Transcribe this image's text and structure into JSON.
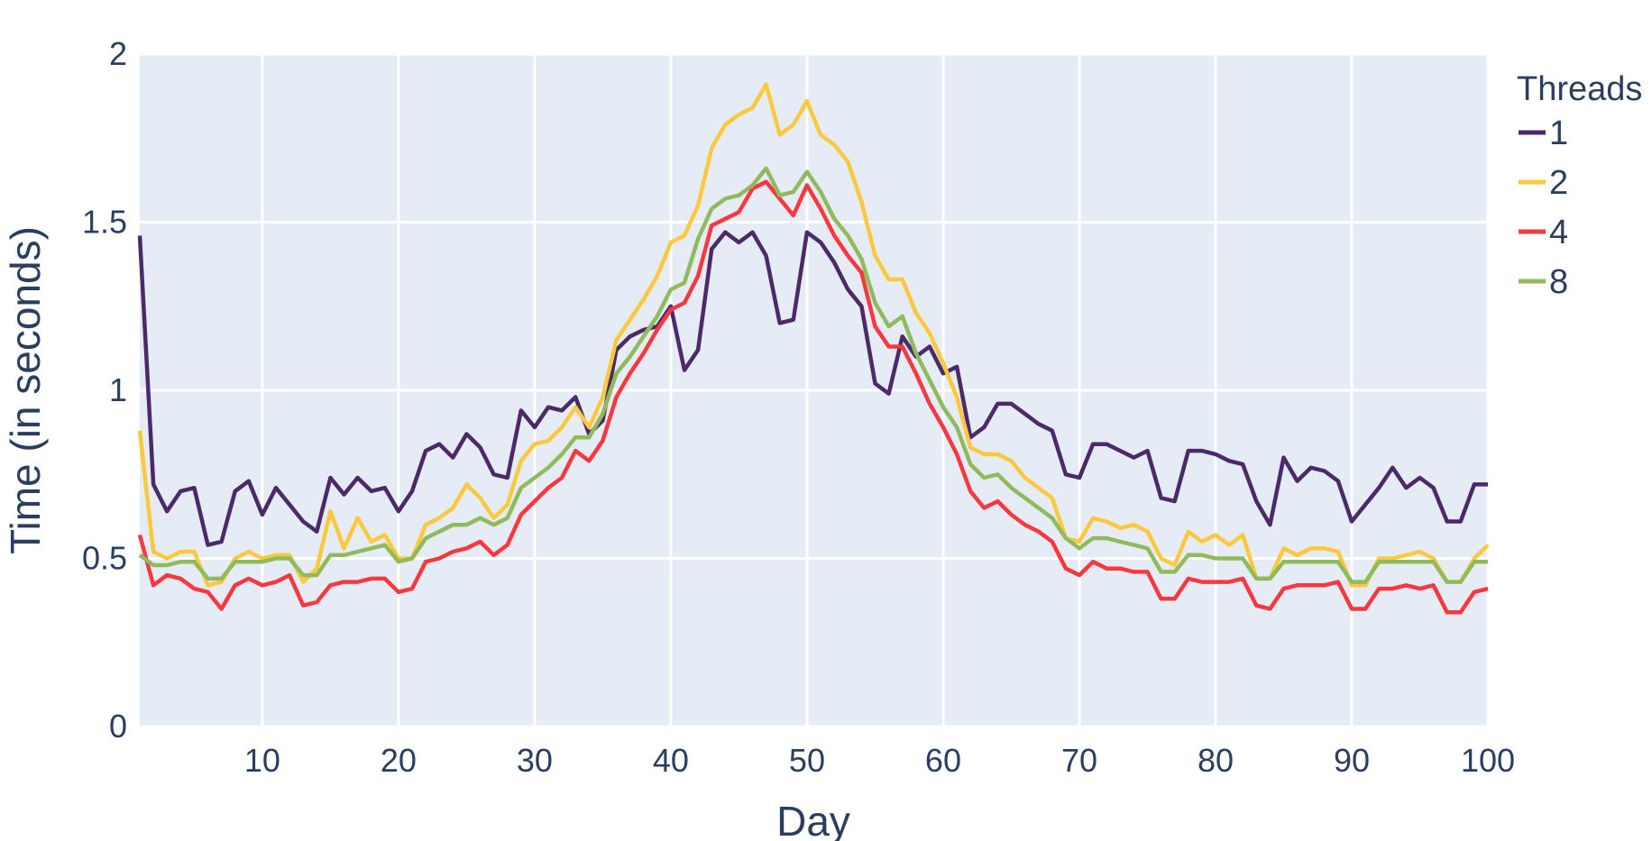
{
  "chart_data": {
    "type": "line",
    "xlabel": "Day",
    "ylabel": "Time (in seconds)",
    "xlim": [
      1,
      100
    ],
    "ylim": [
      0,
      2
    ],
    "xticks": [
      10,
      20,
      30,
      40,
      50,
      60,
      70,
      80,
      90,
      100
    ],
    "xtick_labels": [
      "10",
      "20",
      "30",
      "40",
      "50",
      "60",
      "70",
      "80",
      "90",
      "100"
    ],
    "yticks": [
      0,
      0.5,
      1,
      1.5,
      2
    ],
    "ytick_labels": [
      "0",
      "0.5",
      "1",
      "1.5",
      "2"
    ],
    "grid": true,
    "plot_background": "#e5ecf6",
    "legend": {
      "title": "Threads",
      "position": "top-right"
    },
    "x": [
      1,
      2,
      3,
      4,
      5,
      6,
      7,
      8,
      9,
      10,
      11,
      12,
      13,
      14,
      15,
      16,
      17,
      18,
      19,
      20,
      21,
      22,
      23,
      24,
      25,
      26,
      27,
      28,
      29,
      30,
      31,
      32,
      33,
      34,
      35,
      36,
      37,
      38,
      39,
      40,
      41,
      42,
      43,
      44,
      45,
      46,
      47,
      48,
      49,
      50,
      51,
      52,
      53,
      54,
      55,
      56,
      57,
      58,
      59,
      60,
      61,
      62,
      63,
      64,
      65,
      66,
      67,
      68,
      69,
      70,
      71,
      72,
      73,
      74,
      75,
      76,
      77,
      78,
      79,
      80,
      81,
      82,
      83,
      84,
      85,
      86,
      87,
      88,
      89,
      90,
      91,
      92,
      93,
      94,
      95,
      96,
      97,
      98,
      99,
      100
    ],
    "series": [
      {
        "name": "1",
        "color": "#4c2a69",
        "values": [
          1.46,
          0.72,
          0.64,
          0.7,
          0.71,
          0.54,
          0.55,
          0.7,
          0.73,
          0.63,
          0.71,
          0.66,
          0.61,
          0.58,
          0.74,
          0.69,
          0.74,
          0.7,
          0.71,
          0.64,
          0.7,
          0.82,
          0.84,
          0.8,
          0.87,
          0.83,
          0.75,
          0.74,
          0.94,
          0.89,
          0.95,
          0.94,
          0.98,
          0.87,
          0.91,
          1.12,
          1.16,
          1.18,
          1.19,
          1.25,
          1.06,
          1.12,
          1.42,
          1.47,
          1.44,
          1.47,
          1.4,
          1.2,
          1.21,
          1.47,
          1.44,
          1.38,
          1.3,
          1.25,
          1.02,
          0.99,
          1.16,
          1.1,
          1.13,
          1.05,
          1.07,
          0.86,
          0.89,
          0.96,
          0.96,
          0.93,
          0.9,
          0.88,
          0.75,
          0.74,
          0.84,
          0.84,
          0.82,
          0.8,
          0.82,
          0.68,
          0.67,
          0.82,
          0.82,
          0.81,
          0.79,
          0.78,
          0.67,
          0.6,
          0.8,
          0.73,
          0.77,
          0.76,
          0.73,
          0.61,
          0.66,
          0.71,
          0.77,
          0.71,
          0.74,
          0.71,
          0.61,
          0.61,
          0.72,
          0.72
        ]
      },
      {
        "name": "2",
        "color": "#fcc93e",
        "values": [
          0.88,
          0.52,
          0.5,
          0.52,
          0.52,
          0.42,
          0.43,
          0.5,
          0.52,
          0.5,
          0.51,
          0.51,
          0.43,
          0.47,
          0.64,
          0.53,
          0.62,
          0.55,
          0.57,
          0.5,
          0.5,
          0.6,
          0.62,
          0.65,
          0.72,
          0.68,
          0.62,
          0.66,
          0.79,
          0.84,
          0.85,
          0.89,
          0.95,
          0.89,
          0.98,
          1.15,
          1.21,
          1.27,
          1.34,
          1.44,
          1.46,
          1.55,
          1.72,
          1.79,
          1.82,
          1.84,
          1.91,
          1.76,
          1.79,
          1.86,
          1.76,
          1.73,
          1.68,
          1.56,
          1.4,
          1.33,
          1.33,
          1.23,
          1.17,
          1.08,
          0.98,
          0.83,
          0.81,
          0.81,
          0.79,
          0.74,
          0.71,
          0.68,
          0.56,
          0.55,
          0.62,
          0.61,
          0.59,
          0.6,
          0.58,
          0.5,
          0.48,
          0.58,
          0.55,
          0.57,
          0.54,
          0.57,
          0.44,
          0.44,
          0.53,
          0.51,
          0.53,
          0.53,
          0.52,
          0.42,
          0.42,
          0.5,
          0.5,
          0.51,
          0.52,
          0.5,
          0.43,
          0.43,
          0.5,
          0.54
        ]
      },
      {
        "name": "4",
        "color": "#f7383f",
        "values": [
          0.57,
          0.42,
          0.45,
          0.44,
          0.41,
          0.4,
          0.35,
          0.42,
          0.44,
          0.42,
          0.43,
          0.45,
          0.36,
          0.37,
          0.42,
          0.43,
          0.43,
          0.44,
          0.44,
          0.4,
          0.41,
          0.49,
          0.5,
          0.52,
          0.53,
          0.55,
          0.51,
          0.54,
          0.63,
          0.67,
          0.71,
          0.74,
          0.82,
          0.79,
          0.85,
          0.98,
          1.05,
          1.11,
          1.18,
          1.24,
          1.26,
          1.34,
          1.49,
          1.51,
          1.53,
          1.6,
          1.62,
          1.57,
          1.52,
          1.61,
          1.54,
          1.46,
          1.4,
          1.35,
          1.19,
          1.13,
          1.13,
          1.05,
          0.96,
          0.89,
          0.81,
          0.7,
          0.65,
          0.67,
          0.63,
          0.6,
          0.58,
          0.55,
          0.47,
          0.45,
          0.49,
          0.47,
          0.47,
          0.46,
          0.46,
          0.38,
          0.38,
          0.44,
          0.43,
          0.43,
          0.43,
          0.44,
          0.36,
          0.35,
          0.41,
          0.42,
          0.42,
          0.42,
          0.43,
          0.35,
          0.35,
          0.41,
          0.41,
          0.42,
          0.41,
          0.42,
          0.34,
          0.34,
          0.4,
          0.41
        ]
      },
      {
        "name": "8",
        "color": "#8fbb5d",
        "values": [
          0.51,
          0.48,
          0.48,
          0.49,
          0.49,
          0.44,
          0.44,
          0.49,
          0.49,
          0.49,
          0.5,
          0.5,
          0.45,
          0.45,
          0.51,
          0.51,
          0.52,
          0.53,
          0.54,
          0.49,
          0.5,
          0.56,
          0.58,
          0.6,
          0.6,
          0.62,
          0.6,
          0.62,
          0.71,
          0.74,
          0.77,
          0.81,
          0.86,
          0.86,
          0.93,
          1.05,
          1.1,
          1.16,
          1.22,
          1.3,
          1.32,
          1.45,
          1.54,
          1.57,
          1.58,
          1.61,
          1.66,
          1.58,
          1.59,
          1.65,
          1.59,
          1.51,
          1.46,
          1.39,
          1.26,
          1.19,
          1.22,
          1.11,
          1.03,
          0.95,
          0.89,
          0.78,
          0.74,
          0.75,
          0.71,
          0.68,
          0.65,
          0.62,
          0.56,
          0.53,
          0.56,
          0.56,
          0.55,
          0.54,
          0.53,
          0.46,
          0.46,
          0.51,
          0.51,
          0.5,
          0.5,
          0.5,
          0.44,
          0.44,
          0.49,
          0.49,
          0.49,
          0.49,
          0.49,
          0.43,
          0.43,
          0.49,
          0.49,
          0.49,
          0.49,
          0.49,
          0.43,
          0.43,
          0.49,
          0.49
        ]
      }
    ]
  }
}
